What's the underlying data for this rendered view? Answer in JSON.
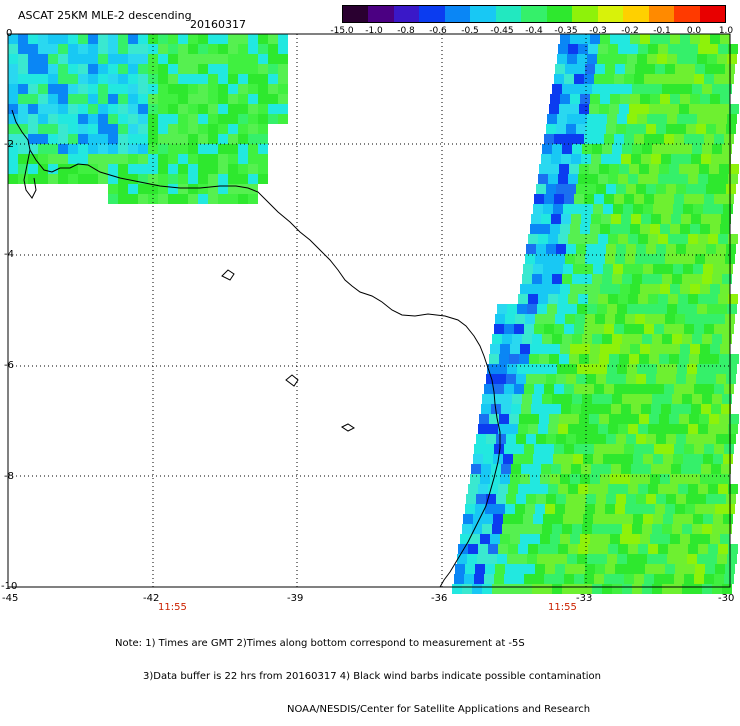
{
  "title": "ASCAT 25KM MLE-2 descending",
  "date": "20160317",
  "colorbar": {
    "labels": [
      "-15.0",
      "-1.0",
      "-0.8",
      "-0.6",
      "-0.5",
      "-0.45",
      "-0.4",
      "-0.35",
      "-0.3",
      "-0.2",
      "-0.1",
      "0.0",
      "1.0"
    ],
    "colors": [
      "#2a0030",
      "#4b0082",
      "#3a18c8",
      "#0b3cf0",
      "#0a86f5",
      "#18c8f4",
      "#22e8c0",
      "#35f06a",
      "#2ee82e",
      "#8ef20a",
      "#d8f20a",
      "#ffd000",
      "#ff8a00",
      "#ff3a00",
      "#e80000"
    ]
  },
  "axes": {
    "x_labels": [
      "-45",
      "-42",
      "-39",
      "-36",
      "-33",
      "-30"
    ],
    "y_labels": [
      "0",
      "-2",
      "-4",
      "-6",
      "-8",
      "-10"
    ]
  },
  "times": [
    "11:55",
    "11:55"
  ],
  "notes": {
    "line1": "Note: 1) Times are GMT 2)Times along bottom correspond to measurement at -5S",
    "line2": "3)Data buffer is 22 hrs from 20160317 4) Black wind barbs indicate possible contamination",
    "line3": "NOAA/NESDIS/Center for Satellite Applications and Research"
  }
}
